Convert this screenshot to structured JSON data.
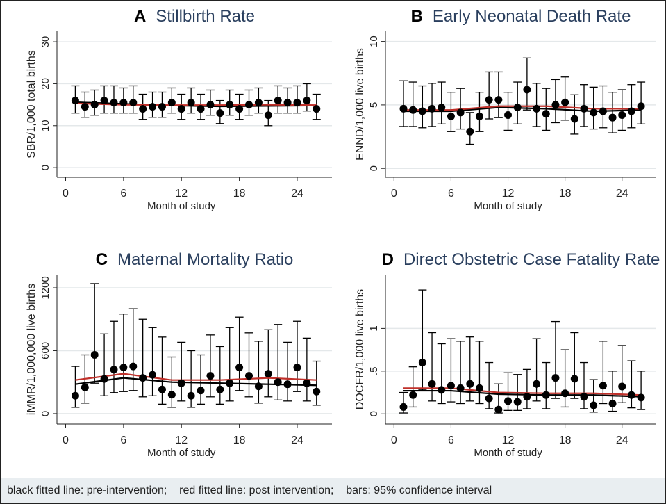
{
  "chart_data": [
    {
      "type": "errorbar",
      "panel": "A",
      "title": "Stillbirth Rate",
      "ylabel": "SBR/1,000 total births",
      "xlabel": "Month of study",
      "xlim": [
        -0.9,
        27.6
      ],
      "xticks": [
        0,
        6,
        12,
        18,
        24
      ],
      "ylim": [
        -2.3,
        32.5
      ],
      "yticks": [
        0,
        10,
        20,
        30
      ],
      "grid": true,
      "color": "#000000",
      "x": [
        1,
        2,
        3,
        4,
        5,
        6,
        7,
        8,
        9,
        10,
        11,
        12,
        13,
        14,
        15,
        16,
        17,
        18,
        19,
        20,
        21,
        22,
        23,
        24,
        25,
        26
      ],
      "values": [
        16,
        14.5,
        15,
        16,
        15.5,
        15.5,
        15.5,
        14,
        14.5,
        14.5,
        15.5,
        14,
        15.5,
        14,
        15,
        13,
        15,
        14,
        15,
        15.5,
        12.5,
        16,
        15.5,
        15.5,
        16,
        14
      ],
      "lower": [
        13,
        12,
        12.5,
        13,
        13,
        13,
        13,
        11.5,
        12,
        12,
        13,
        11.5,
        13,
        11.5,
        12.5,
        10.5,
        12.5,
        11.5,
        12.5,
        13,
        10,
        13,
        13,
        13,
        13.5,
        11.5
      ],
      "upper": [
        19.5,
        18,
        18.5,
        19.5,
        19.5,
        19,
        19.5,
        17.5,
        18,
        18,
        19,
        17.5,
        19,
        17.5,
        18.5,
        16,
        18.5,
        17.5,
        18.5,
        19,
        16,
        19.5,
        19,
        19.5,
        20,
        17.5
      ],
      "fits": [
        {
          "color": "#000000",
          "x": [
            1,
            6,
            11,
            16,
            21,
            26
          ],
          "values": [
            15.6,
            15.2,
            14.8,
            14.6,
            14.7,
            14.8
          ]
        },
        {
          "color": "#c0302a",
          "x": [
            1,
            6,
            11,
            16,
            21,
            26
          ],
          "values": [
            15.3,
            15.0,
            14.9,
            14.9,
            15.0,
            14.9
          ]
        }
      ]
    },
    {
      "type": "errorbar",
      "panel": "B",
      "title": "Early Neonatal Death Rate",
      "ylabel": "ENND/1,000 live births",
      "xlabel": "Month of study",
      "xlim": [
        -0.9,
        27.6
      ],
      "xticks": [
        0,
        6,
        12,
        18,
        24
      ],
      "ylim": [
        -0.7,
        10.8
      ],
      "yticks": [
        0,
        5,
        10
      ],
      "grid": true,
      "color": "#000000",
      "x": [
        1,
        2,
        3,
        4,
        5,
        6,
        7,
        8,
        9,
        10,
        11,
        12,
        13,
        14,
        15,
        16,
        17,
        18,
        19,
        20,
        21,
        22,
        23,
        24,
        25,
        26
      ],
      "values": [
        4.7,
        4.6,
        4.5,
        4.7,
        4.8,
        4.1,
        4.4,
        2.9,
        4.1,
        5.4,
        5.4,
        4.2,
        4.8,
        6.2,
        4.7,
        4.3,
        5.0,
        5.2,
        3.9,
        4.7,
        4.4,
        4.5,
        4.0,
        4.2,
        4.5,
        4.9
      ],
      "lower": [
        3.3,
        3.3,
        3.2,
        3.3,
        3.5,
        2.9,
        3.1,
        1.9,
        2.9,
        3.9,
        4.0,
        3.0,
        3.5,
        4.6,
        3.3,
        3.0,
        3.6,
        3.8,
        2.7,
        3.3,
        3.1,
        3.2,
        2.8,
        3.0,
        3.2,
        3.5
      ],
      "upper": [
        6.9,
        6.8,
        6.5,
        6.7,
        6.8,
        6.0,
        6.3,
        4.4,
        6.0,
        7.6,
        7.6,
        6.0,
        6.8,
        8.7,
        6.7,
        6.3,
        7.0,
        7.2,
        5.8,
        6.6,
        6.4,
        6.5,
        6.0,
        6.2,
        6.6,
        6.8
      ],
      "fits": [
        {
          "color": "#000000",
          "x": [
            1,
            6,
            11,
            16,
            21,
            26
          ],
          "values": [
            4.5,
            4.5,
            4.8,
            4.7,
            4.5,
            4.6
          ]
        },
        {
          "color": "#c0302a",
          "x": [
            1,
            6,
            11,
            16,
            21,
            26
          ],
          "values": [
            4.6,
            4.6,
            4.9,
            4.9,
            4.7,
            4.7
          ]
        }
      ]
    },
    {
      "type": "errorbar",
      "panel": "C",
      "title": "Maternal Mortality Ratio",
      "ylabel": "iMMR/1,000,000 live births",
      "xlabel": "Month of study",
      "xlim": [
        -0.9,
        27.6
      ],
      "xticks": [
        0,
        6,
        12,
        18,
        24
      ],
      "ylim": [
        -100,
        1326
      ],
      "yticks": [
        0,
        600,
        1200
      ],
      "grid": true,
      "color": "#000000",
      "x": [
        1,
        2,
        3,
        4,
        5,
        6,
        7,
        8,
        9,
        10,
        11,
        12,
        13,
        14,
        15,
        16,
        17,
        18,
        19,
        20,
        21,
        22,
        23,
        24,
        25,
        26
      ],
      "values": [
        170,
        250,
        560,
        330,
        420,
        440,
        450,
        340,
        370,
        230,
        180,
        290,
        170,
        220,
        360,
        230,
        290,
        440,
        360,
        260,
        380,
        300,
        280,
        440,
        290,
        210
      ],
      "lower": [
        60,
        100,
        290,
        170,
        200,
        210,
        220,
        160,
        170,
        90,
        60,
        120,
        60,
        90,
        160,
        90,
        120,
        220,
        160,
        100,
        160,
        130,
        120,
        210,
        120,
        80
      ],
      "upper": [
        450,
        560,
        1240,
        760,
        880,
        950,
        1000,
        900,
        820,
        730,
        540,
        680,
        600,
        560,
        750,
        640,
        820,
        920,
        770,
        690,
        800,
        850,
        680,
        880,
        720,
        500
      ],
      "fits": [
        {
          "color": "#000000",
          "x": [
            1,
            6,
            11,
            16,
            21,
            26
          ],
          "values": [
            280,
            340,
            300,
            290,
            280,
            270
          ]
        },
        {
          "color": "#c0302a",
          "x": [
            1,
            6,
            11,
            16,
            21,
            26
          ],
          "values": [
            320,
            380,
            320,
            320,
            340,
            320
          ]
        }
      ]
    },
    {
      "type": "errorbar",
      "panel": "D",
      "title": "Direct Obstetric Case Fatality Rate",
      "ylabel": "DOCFR/1,000 live births",
      "xlabel": "Month of study",
      "xlim": [
        -0.9,
        27.6
      ],
      "xticks": [
        0,
        6,
        12,
        18,
        24
      ],
      "ylim": [
        -0.12,
        1.63
      ],
      "yticks": [
        0,
        {
          "value": 0.5,
          "label": ".5"
        },
        1
      ],
      "grid": true,
      "color": "#000000",
      "x": [
        1,
        2,
        3,
        4,
        5,
        6,
        7,
        8,
        9,
        10,
        11,
        12,
        13,
        14,
        15,
        16,
        17,
        18,
        19,
        20,
        21,
        22,
        23,
        24,
        25,
        26
      ],
      "values": [
        0.08,
        0.22,
        0.6,
        0.35,
        0.28,
        0.33,
        0.3,
        0.35,
        0.3,
        0.18,
        0.05,
        0.15,
        0.14,
        0.2,
        0.35,
        0.22,
        0.42,
        0.24,
        0.41,
        0.2,
        0.1,
        0.33,
        0.12,
        0.32,
        0.22,
        0.19
      ],
      "lower": [
        0.01,
        0.08,
        0.28,
        0.15,
        0.12,
        0.14,
        0.12,
        0.15,
        0.12,
        0.06,
        0.01,
        0.04,
        0.04,
        0.06,
        0.15,
        0.06,
        0.18,
        0.08,
        0.18,
        0.06,
        0.02,
        0.12,
        0.03,
        0.13,
        0.07,
        0.05
      ],
      "upper": [
        0.25,
        0.55,
        1.45,
        0.95,
        0.82,
        0.88,
        0.85,
        0.9,
        0.85,
        0.6,
        0.35,
        0.48,
        0.46,
        0.52,
        0.88,
        0.6,
        1.08,
        0.75,
        0.95,
        0.6,
        0.4,
        0.85,
        0.5,
        0.8,
        0.62,
        0.5
      ],
      "fits": [
        {
          "color": "#000000",
          "x": [
            1,
            6,
            11,
            16,
            21,
            26
          ],
          "values": [
            0.27,
            0.27,
            0.23,
            0.22,
            0.22,
            0.2
          ]
        },
        {
          "color": "#c0302a",
          "x": [
            1,
            6,
            11,
            16,
            21,
            26
          ],
          "values": [
            0.3,
            0.3,
            0.25,
            0.24,
            0.24,
            0.22
          ]
        }
      ]
    }
  ],
  "caption": "black fitted line: pre-intervention;    red fitted line: post intervention;    bars: 95% confidence interval"
}
